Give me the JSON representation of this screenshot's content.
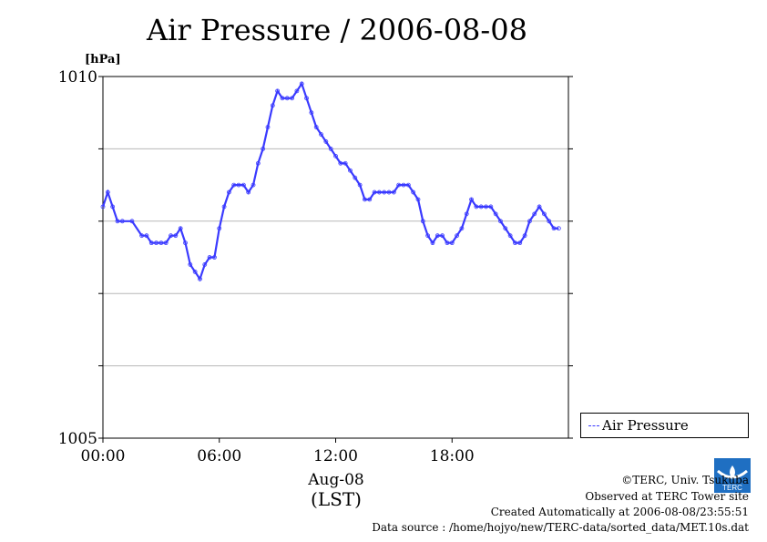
{
  "chart_data": {
    "type": "line",
    "title": "Air Pressure / 2006-08-08",
    "ylabel": "[hPa]",
    "xlabel_date": "Aug-08",
    "xlabel_tz": "(LST)",
    "ylim": [
      1005,
      1010
    ],
    "y_ticks": [
      1005,
      1006,
      1007,
      1008,
      1009,
      1010
    ],
    "y_tick_labels": [
      "1005",
      "",
      "",
      "",
      "",
      "1010"
    ],
    "x_ticks": [
      "00:00",
      "06:00",
      "12:00",
      "18:00"
    ],
    "x_range_hours": [
      0,
      24
    ],
    "grid": true,
    "legend": {
      "position": "right-bottom",
      "entries": [
        "Air Pressure"
      ]
    },
    "series": [
      {
        "name": "Air Pressure",
        "color": "#3a3aff",
        "x": [
          0,
          0.25,
          0.5,
          0.75,
          1,
          1.5,
          2,
          2.25,
          2.5,
          2.75,
          3,
          3.25,
          3.5,
          3.75,
          4,
          4.25,
          4.5,
          4.75,
          5,
          5.25,
          5.5,
          5.75,
          6,
          6.25,
          6.5,
          6.75,
          7,
          7.25,
          7.5,
          7.75,
          8,
          8.25,
          8.5,
          8.75,
          9,
          9.25,
          9.5,
          9.75,
          10,
          10.25,
          10.5,
          10.75,
          11,
          11.25,
          11.5,
          11.75,
          12,
          12.25,
          12.5,
          12.75,
          13,
          13.25,
          13.5,
          13.75,
          14,
          14.25,
          14.5,
          14.75,
          15,
          15.25,
          15.5,
          15.75,
          16,
          16.25,
          16.5,
          16.75,
          17,
          17.25,
          17.5,
          17.75,
          18,
          18.25,
          18.5,
          18.75,
          19,
          19.25,
          19.5,
          19.75,
          20,
          20.25,
          20.5,
          20.75,
          21,
          21.25,
          21.5,
          21.75,
          22,
          22.25,
          22.5,
          22.75,
          23,
          23.25,
          23.5
        ],
        "values": [
          1008.2,
          1008.4,
          1008.2,
          1008.0,
          1008.0,
          1008.0,
          1007.8,
          1007.8,
          1007.7,
          1007.7,
          1007.7,
          1007.7,
          1007.8,
          1007.8,
          1007.9,
          1007.7,
          1007.4,
          1007.3,
          1007.2,
          1007.4,
          1007.5,
          1007.5,
          1007.9,
          1008.2,
          1008.4,
          1008.5,
          1008.5,
          1008.5,
          1008.4,
          1008.5,
          1008.8,
          1009.0,
          1009.3,
          1009.6,
          1009.8,
          1009.7,
          1009.7,
          1009.7,
          1009.8,
          1009.9,
          1009.7,
          1009.5,
          1009.3,
          1009.2,
          1009.1,
          1009.0,
          1008.9,
          1008.8,
          1008.8,
          1008.7,
          1008.6,
          1008.5,
          1008.3,
          1008.3,
          1008.4,
          1008.4,
          1008.4,
          1008.4,
          1008.4,
          1008.5,
          1008.5,
          1008.5,
          1008.4,
          1008.3,
          1008.0,
          1007.8,
          1007.7,
          1007.8,
          1007.8,
          1007.7,
          1007.7,
          1007.8,
          1007.9,
          1008.1,
          1008.3,
          1008.2,
          1008.2,
          1008.2,
          1008.2,
          1008.1,
          1008.0,
          1007.9,
          1007.8,
          1007.7,
          1007.7,
          1007.8,
          1008.0,
          1008.1,
          1008.2,
          1008.1,
          1008.0,
          1007.9,
          1007.9
        ]
      }
    ]
  },
  "credits": {
    "copyright": "©TERC, Univ. Tsukuba",
    "observed": "Observed at TERC Tower site",
    "created": "Created Automatically at 2006-08-08/23:55:51",
    "source": "Data source : /home/hojyo/new/TERC-data/sorted_data/MET.10s.dat",
    "logo_text": "TERC"
  }
}
